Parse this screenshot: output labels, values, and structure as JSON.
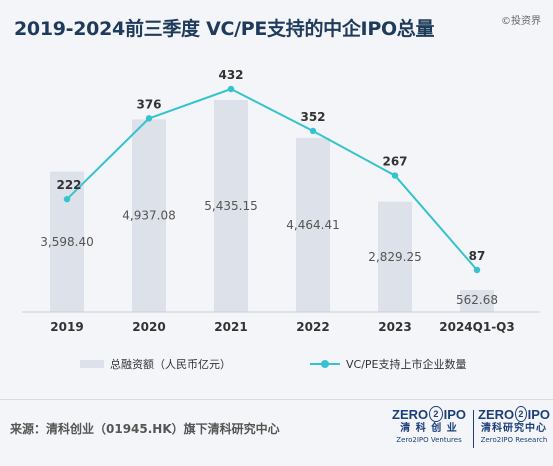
{
  "title": "2019-2024前三季度 VC/PE支持的中企IPO总量",
  "watermark": "©投资界",
  "chart_data": {
    "type": "bar+line",
    "categories": [
      "2019",
      "2020",
      "2021",
      "2022",
      "2023",
      "2024Q1-Q3"
    ],
    "series": [
      {
        "name": "总融资额（人民币亿元）",
        "type": "bar",
        "values": [
          3598.4,
          4937.08,
          5435.15,
          4464.41,
          2829.25,
          562.68
        ],
        "labels": [
          "3,598.40",
          "4,937.08",
          "5,435.15",
          "4,464.41",
          "2,829.25",
          "562.68"
        ],
        "color": "#dde1e9"
      },
      {
        "name": "VC/PE支持上市企业数量",
        "type": "line",
        "values": [
          222,
          376,
          432,
          352,
          267,
          87
        ],
        "labels": [
          "222",
          "376",
          "432",
          "352",
          "267",
          "87"
        ],
        "color": "#35c4cf"
      }
    ],
    "legend_position": "bottom",
    "grid": false
  },
  "legend": {
    "bar_label": "总融资额（人民币亿元）",
    "line_label": "VC/PE支持上市企业数量"
  },
  "footer": {
    "source": "来源：清科创业（01945.HK）旗下清科研究中心",
    "logo1": {
      "mark_left": "ZERO",
      "mark_mid": "2",
      "mark_right": "IPO",
      "cn": "清 科 创 业",
      "en": "Zero2IPO Ventures"
    },
    "logo2": {
      "mark_left": "ZERO",
      "mark_mid": "2",
      "mark_right": "IPO",
      "cn": "清科研究中心",
      "en": "Zero2IPO Research"
    }
  }
}
